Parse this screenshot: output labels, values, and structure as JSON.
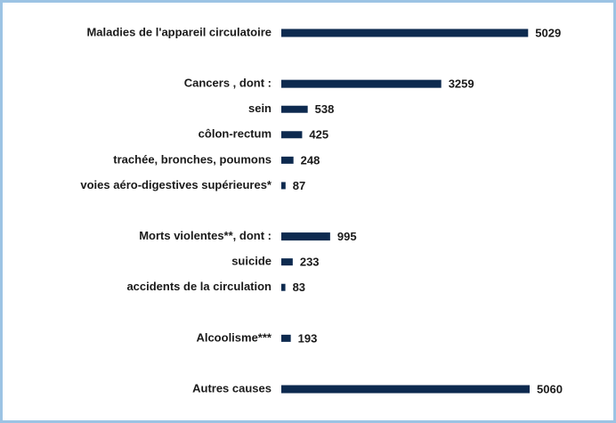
{
  "chart_data": {
    "type": "bar",
    "orientation": "horizontal",
    "color": "#0d2a4f",
    "categories": [
      "Maladies de l'appareil circulatoire",
      null,
      "Cancers , dont :",
      "sein",
      "côlon-rectum",
      "trachée, bronches, poumons",
      "voies aéro-digestives supérieures*",
      null,
      "Morts violentes**, dont :",
      "suicide",
      "accidents de la circulation",
      null,
      "Alcoolisme***",
      null,
      "Autres causes"
    ],
    "values": [
      5029,
      null,
      3259,
      538,
      425,
      248,
      87,
      null,
      995,
      233,
      83,
      null,
      193,
      null,
      5060
    ]
  }
}
